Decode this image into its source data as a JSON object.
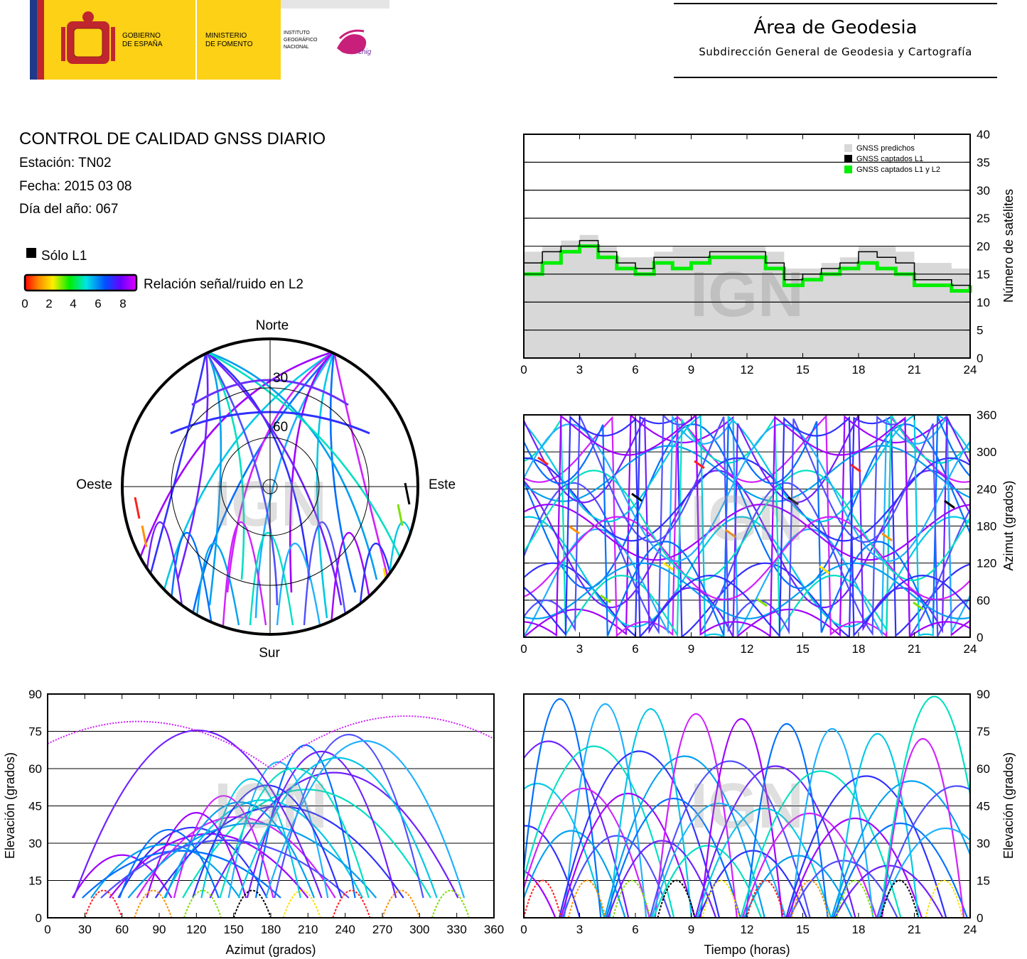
{
  "header": {
    "gob_line1": "GOBIERNO",
    "gob_line2": "DE ESPAÑA",
    "min_line1": "MINISTERIO",
    "min_line2": "DE FOMENTO",
    "ign_line1": "INSTITUTO",
    "ign_line2": "GEOGRÁFICO",
    "ign_line3": "NACIONAL",
    "cnig": "cnig",
    "area_title": "Área de Geodesia",
    "area_subtitle": "Subdirección General de Geodesia y Cartografía"
  },
  "report": {
    "title": "CONTROL DE CALIDAD GNSS DIARIO",
    "station": "Estación: TN02",
    "date": "Fecha: 2015 03 08",
    "doy": "Día del año: 067"
  },
  "legend": {
    "l1_only": "Sólo L1",
    "snr_label": "Relación señal/ruido en L2",
    "snr_ticks": [
      "0",
      "2",
      "4",
      "6",
      "8"
    ],
    "colors": {
      "l1_only": "#000000",
      "predicted": "#d8d8d8",
      "l1l2": "#00ee00"
    }
  },
  "watermark": "IGN",
  "chart_data": [
    {
      "id": "satellites",
      "type": "area",
      "legend": [
        "GNSS predichos",
        "GNSS captados L1",
        "GNSS captados L1 y L2"
      ],
      "ylabel": "Número de satélites",
      "xlim": [
        0,
        24
      ],
      "ylim": [
        0,
        40
      ],
      "xticks": [
        "0",
        "3",
        "6",
        "9",
        "12",
        "15",
        "18",
        "21",
        "24"
      ],
      "yticks": [
        "0",
        "5",
        "10",
        "15",
        "20",
        "25",
        "30",
        "35",
        "40"
      ],
      "x": [
        0,
        1,
        2,
        3,
        4,
        5,
        6,
        7,
        8,
        9,
        10,
        11,
        12,
        13,
        14,
        15,
        16,
        17,
        18,
        19,
        20,
        21,
        22,
        23,
        24
      ],
      "predicted": [
        19,
        20,
        21,
        22,
        20,
        18,
        18,
        19,
        20,
        20,
        20,
        20,
        20,
        19,
        16,
        16,
        17,
        18,
        20,
        20,
        19,
        17,
        17,
        16,
        17
      ],
      "l1": [
        17,
        19,
        20,
        21,
        19,
        17,
        16,
        18,
        18,
        18,
        19,
        19,
        19,
        17,
        14,
        15,
        16,
        17,
        19,
        18,
        17,
        14,
        14,
        13,
        15
      ],
      "l1l2": [
        15,
        17,
        19,
        20,
        18,
        16,
        15,
        17,
        16,
        17,
        18,
        18,
        18,
        16,
        13,
        14,
        15,
        16,
        17,
        16,
        15,
        13,
        13,
        12,
        13
      ]
    },
    {
      "id": "skyplot",
      "type": "scatter",
      "directions": {
        "north": "Norte",
        "south": "Sur",
        "west": "Oeste",
        "east": "Este"
      },
      "rings": [
        "30",
        "60"
      ]
    },
    {
      "id": "azimuth-time",
      "type": "scatter",
      "ylabel": "Azimut (grados)",
      "xlim": [
        0,
        24
      ],
      "ylim": [
        0,
        360
      ],
      "xticks": [
        "0",
        "3",
        "6",
        "9",
        "12",
        "15",
        "18",
        "21",
        "24"
      ],
      "yticks": [
        "0",
        "60",
        "120",
        "180",
        "240",
        "300",
        "360"
      ]
    },
    {
      "id": "elevation-azimuth",
      "type": "scatter",
      "xlabel": "Azimut (grados)",
      "ylabel": "Elevación (grados)",
      "xlim": [
        0,
        360
      ],
      "ylim": [
        0,
        90
      ],
      "xticks": [
        "0",
        "30",
        "60",
        "90",
        "120",
        "150",
        "180",
        "210",
        "240",
        "270",
        "300",
        "330",
        "360"
      ],
      "yticks": [
        "0",
        "15",
        "30",
        "45",
        "60",
        "75",
        "90"
      ]
    },
    {
      "id": "elevation-time",
      "type": "scatter",
      "xlabel": "Tiempo (horas)",
      "ylabel": "Elevación (grados)",
      "xlim": [
        0,
        24
      ],
      "ylim": [
        0,
        90
      ],
      "xticks": [
        "0",
        "3",
        "6",
        "9",
        "12",
        "15",
        "18",
        "21",
        "24"
      ],
      "yticks": [
        "0",
        "15",
        "30",
        "45",
        "60",
        "75",
        "90"
      ]
    }
  ]
}
